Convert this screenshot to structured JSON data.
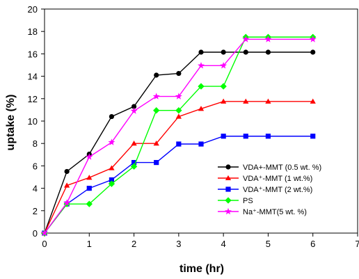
{
  "chart_data": {
    "type": "line",
    "xlabel": "time (hr)",
    "ylabel": "uptake (%)",
    "xlim": [
      0,
      7
    ],
    "ylim": [
      0,
      20
    ],
    "xticks": [
      0,
      1,
      2,
      3,
      4,
      5,
      6,
      7
    ],
    "yticks": [
      0,
      2,
      4,
      6,
      8,
      10,
      12,
      14,
      16,
      18,
      20
    ],
    "grid": false,
    "legend_position": "lower-right",
    "series": [
      {
        "name": "VDA+-MMT (0.5 wt. %)",
        "color": "#000000",
        "marker": "circle",
        "x": [
          0,
          0.5,
          1,
          1.5,
          2,
          2.5,
          3,
          3.5,
          4,
          4.5,
          5,
          6
        ],
        "y": [
          0,
          5.5,
          7.05,
          10.4,
          11.3,
          14.1,
          14.25,
          16.15,
          16.15,
          16.15,
          16.15,
          16.15
        ]
      },
      {
        "name": "VDA⁺-MMT (1 wt.%)",
        "color": "#ff0000",
        "marker": "triangle",
        "x": [
          0,
          0.5,
          1,
          1.5,
          2,
          2.5,
          3,
          3.5,
          4,
          4.5,
          5,
          6
        ],
        "y": [
          0,
          4.25,
          4.95,
          5.8,
          8.0,
          8.0,
          10.4,
          11.1,
          11.75,
          11.75,
          11.75,
          11.75
        ]
      },
      {
        "name": "VDA⁺-MMT (2 wt.%)",
        "color": "#0000ff",
        "marker": "square",
        "x": [
          0,
          0.5,
          1,
          1.5,
          2,
          2.5,
          3,
          3.5,
          4,
          4.5,
          5,
          6
        ],
        "y": [
          0,
          2.6,
          4.0,
          4.75,
          6.3,
          6.3,
          7.95,
          7.95,
          8.65,
          8.65,
          8.65,
          8.65
        ]
      },
      {
        "name": "PS",
        "color": "#00ff00",
        "marker": "diamond",
        "x": [
          0,
          0.5,
          1,
          1.5,
          2,
          2.5,
          3,
          3.5,
          4,
          4.5,
          5,
          6
        ],
        "y": [
          0,
          2.6,
          2.6,
          4.4,
          5.95,
          10.95,
          10.95,
          13.1,
          13.1,
          17.5,
          17.5,
          17.5
        ]
      },
      {
        "name": "Na⁺-MMT(5 wt. %)",
        "color": "#ff00ff",
        "marker": "star",
        "x": [
          0,
          0.5,
          1,
          1.5,
          2,
          2.5,
          3,
          3.5,
          4,
          4.5,
          5,
          6
        ],
        "y": [
          0,
          2.7,
          6.8,
          8.1,
          10.9,
          12.2,
          12.2,
          14.95,
          14.95,
          17.3,
          17.3,
          17.3
        ]
      }
    ]
  }
}
